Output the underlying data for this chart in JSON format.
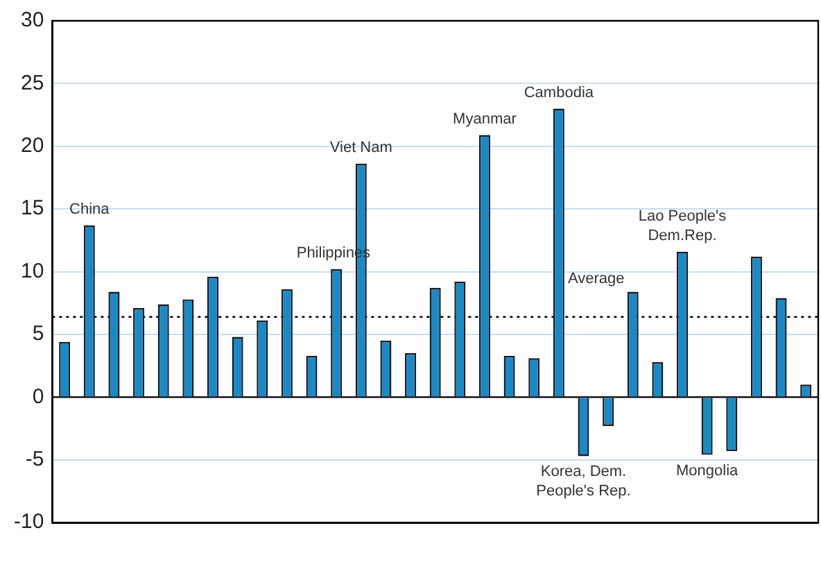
{
  "chart_data": {
    "type": "bar",
    "categories": [
      null,
      null,
      null,
      null,
      null,
      null,
      null,
      null,
      null,
      null,
      null,
      null,
      null,
      null,
      null,
      null,
      null,
      null,
      null,
      null,
      null,
      null,
      null,
      null,
      null,
      null,
      null,
      null,
      null,
      null,
      null
    ],
    "values": [
      4.4,
      13.7,
      8.4,
      7.1,
      7.4,
      7.8,
      9.6,
      4.8,
      6.1,
      8.6,
      3.3,
      10.2,
      18.6,
      4.5,
      3.5,
      8.7,
      9.2,
      20.9,
      3.3,
      3.1,
      23.0,
      -4.7,
      -2.3,
      8.4,
      2.8,
      11.6,
      -4.6,
      -4.3,
      11.2,
      7.9,
      1.0
    ],
    "color": "#1a8ac6",
    "ylim": [
      -10,
      30
    ],
    "yticks": [
      -10,
      -5,
      0,
      5,
      10,
      15,
      20,
      25,
      30
    ],
    "grid": "y",
    "legend": false,
    "ref_lines": [
      {
        "axis": "y",
        "value": 6.4,
        "label": "Average",
        "color": "#000000",
        "line_style": "dotted"
      }
    ],
    "annotations": [
      {
        "text": "China",
        "y": 13.7
      },
      {
        "text": "Philippines",
        "y": 10.2
      },
      {
        "text": "Viet Nam",
        "y": 18.6
      },
      {
        "text": "Myanmar",
        "y": 20.9
      },
      {
        "text": "Cambodia",
        "y": 23.0
      },
      {
        "text": "Korea, Dem. People's Rep.",
        "y": -4.7
      },
      {
        "text": "Lao People's Dem.Rep.",
        "y": 11.6
      },
      {
        "text": "Mongolia",
        "y": -4.6
      }
    ]
  }
}
